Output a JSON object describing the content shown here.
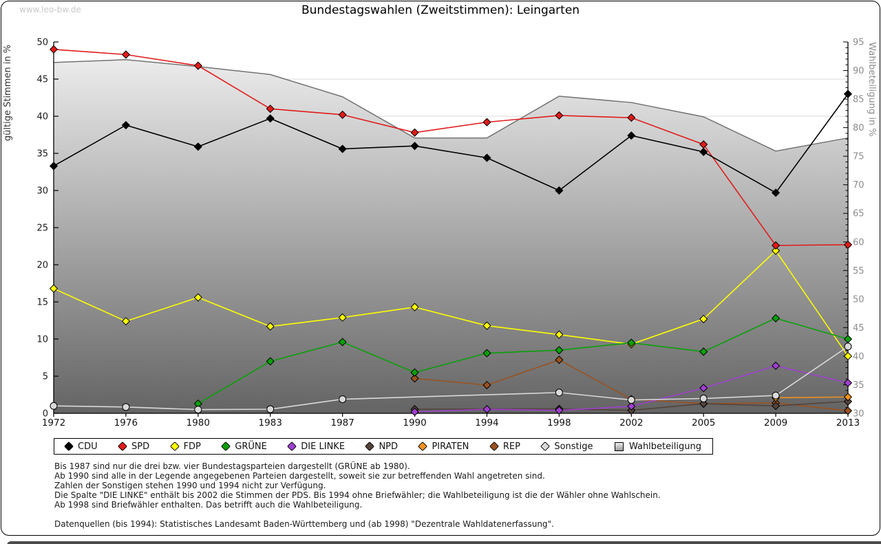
{
  "watermark": "www.leo-bw.de",
  "title": "Bundestagswahlen (Zweitstimmen): Leingarten",
  "chart_data": {
    "type": "line",
    "title": "Bundestagswahlen (Zweitstimmen): Leingarten",
    "x_categories": [
      "1972",
      "1976",
      "1980",
      "1983",
      "1987",
      "1990",
      "1994",
      "1998",
      "2002",
      "2005",
      "2009",
      "2013"
    ],
    "left_axis": {
      "label": "gültige Stimmen in %",
      "min": 0,
      "max": 50,
      "tick_step": 5
    },
    "right_axis": {
      "label": "Wahlbeteiligung in %",
      "min": 30,
      "max": 95,
      "tick_step": 5,
      "minor_tick_step": 1
    },
    "grid": "horizontal-left-axis-5s",
    "legend_position": "bottom",
    "series": [
      {
        "name": "CDU",
        "axis": "left",
        "marker": "diamond",
        "color": "#000000",
        "values": [
          33.3,
          38.8,
          35.9,
          39.7,
          35.6,
          36.0,
          34.4,
          30.0,
          37.4,
          35.2,
          29.7,
          43.0
        ]
      },
      {
        "name": "SPD",
        "axis": "left",
        "marker": "diamond",
        "color": "#e11b1b",
        "values": [
          49.0,
          48.3,
          46.8,
          41.0,
          40.2,
          37.8,
          39.2,
          40.1,
          39.8,
          36.2,
          22.6,
          22.7
        ]
      },
      {
        "name": "FDP",
        "axis": "left",
        "marker": "diamond",
        "color": "#ffff00",
        "values": [
          16.8,
          12.4,
          15.6,
          11.7,
          12.9,
          14.3,
          11.8,
          10.6,
          9.3,
          12.7,
          21.9,
          7.7
        ]
      },
      {
        "name": "GRÜNE",
        "axis": "left",
        "marker": "diamond",
        "color": "#09a009",
        "values": [
          null,
          null,
          1.3,
          7.0,
          9.6,
          5.5,
          8.1,
          8.5,
          9.5,
          8.3,
          12.8,
          10.0
        ]
      },
      {
        "name": "DIE LINKE",
        "axis": "left",
        "marker": "diamond",
        "color": "#a040d0",
        "values": [
          null,
          null,
          null,
          null,
          null,
          0.2,
          0.55,
          0.4,
          0.95,
          3.4,
          6.4,
          4.1
        ]
      },
      {
        "name": "NPD",
        "axis": "left",
        "marker": "diamond",
        "color": "#53433b",
        "values": [
          null,
          null,
          null,
          null,
          null,
          0.55,
          null,
          0.6,
          0.4,
          1.3,
          1.0,
          1.6
        ]
      },
      {
        "name": "PIRATEN",
        "axis": "left",
        "marker": "diamond",
        "color": "#f0921e",
        "values": [
          null,
          null,
          null,
          null,
          null,
          null,
          null,
          null,
          null,
          null,
          2.1,
          2.2
        ]
      },
      {
        "name": "REP",
        "axis": "left",
        "marker": "diamond",
        "color": "#9a5220",
        "values": [
          null,
          null,
          null,
          null,
          null,
          4.7,
          3.8,
          7.2,
          1.9,
          1.3,
          1.4,
          0.35
        ]
      },
      {
        "name": "Sonstige",
        "axis": "left",
        "marker": "circle",
        "color": "#d9d9d9",
        "values": [
          1.0,
          0.85,
          0.5,
          0.55,
          1.9,
          null,
          null,
          2.8,
          1.8,
          2.0,
          2.4,
          9.0
        ]
      },
      {
        "name": "Wahlbeteiligung",
        "axis": "right",
        "marker": "none",
        "type": "area",
        "color": "#737373",
        "area_gradient": [
          "#f2f2f2",
          "#646464"
        ],
        "values": [
          91.4,
          91.9,
          90.7,
          89.3,
          85.4,
          78.2,
          78.2,
          85.5,
          84.4,
          81.9,
          75.9,
          78.2
        ]
      }
    ],
    "colors": {
      "grid": "#d8d8d8",
      "axis": "#000000",
      "right_tick_labels": "#8c8c8c",
      "left_tick_labels": "#1a1a1a"
    }
  },
  "legend": {
    "items": [
      {
        "label": "CDU",
        "color": "#000000",
        "shape": "diamond"
      },
      {
        "label": "SPD",
        "color": "#e11b1b",
        "shape": "diamond"
      },
      {
        "label": "FDP",
        "color": "#ffff00",
        "shape": "diamond"
      },
      {
        "label": "GRÜNE",
        "color": "#09a009",
        "shape": "diamond"
      },
      {
        "label": "DIE LINKE",
        "color": "#a040d0",
        "shape": "diamond"
      },
      {
        "label": "NPD",
        "color": "#53433b",
        "shape": "diamond"
      },
      {
        "label": "PIRATEN",
        "color": "#f0921e",
        "shape": "diamond"
      },
      {
        "label": "REP",
        "color": "#9a5220",
        "shape": "diamond"
      },
      {
        "label": "Sonstige",
        "color": "#d9d9d9",
        "shape": "diamond"
      },
      {
        "label": "Wahlbeteiligung",
        "color": "#c0c0c0",
        "shape": "square"
      }
    ]
  },
  "footnotes": [
    "Bis 1987 sind nur die drei bzw. vier Bundestagsparteien dargestellt (GRÜNE ab 1980).",
    "Ab 1990 sind alle in der Legende angegebenen Parteien dargestellt, soweit sie zur betreffenden Wahl angetreten sind.",
    "Zahlen der Sonstigen stehen 1990 und 1994 nicht zur Verfügung.",
    "Die Spalte \"DIE LINKE\" enthält bis 2002 die Stimmen der PDS. Bis 1994 ohne Briefwähler; die Wahlbeteiligung ist die der Wähler ohne Wahlschein.",
    "Ab 1998 sind Briefwähler enthalten. Das betrifft auch die Wahlbeteiligung.",
    "",
    "Datenquellen (bis 1994): Statistisches Landesamt Baden-Württemberg und (ab 1998) \"Dezentrale Wahldatenerfassung\"."
  ]
}
